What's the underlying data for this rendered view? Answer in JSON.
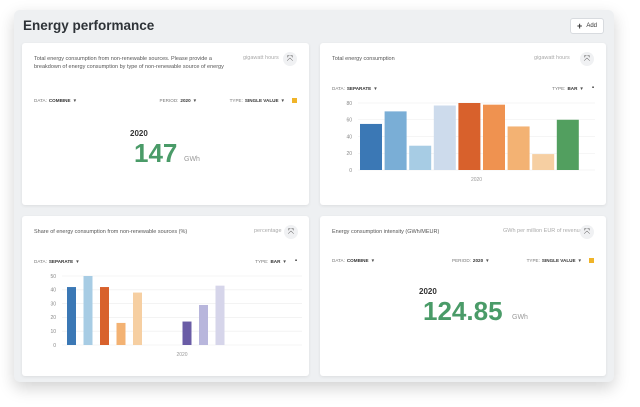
{
  "page": {
    "title": "Energy performance",
    "add_label": "Add"
  },
  "cards": [
    {
      "title": "Total energy consumption from non-renewable sources. Please provide a breakdown of energy consumption by type of non-renewable source of energy",
      "unit": "gigawatt hours",
      "controls": {
        "data_label": "DATA:",
        "data_value": "COMBINE",
        "period_label": "PERIOD:",
        "period_value": "2020",
        "type_label": "TYPE:",
        "type_value": "SINGLE VALUE"
      },
      "year": "2020",
      "value": "147",
      "value_unit": "GWh"
    },
    {
      "title": "Total energy consumption",
      "unit": "gigawatt hours",
      "controls": {
        "data_label": "DATA:",
        "data_value": "SEPARATE",
        "type_label": "TYPE:",
        "type_value": "BAR"
      }
    },
    {
      "title": "Share of energy consumption from non-renewable sources (%)",
      "unit": "percentage",
      "controls": {
        "data_label": "DATA:",
        "data_value": "SEPARATE",
        "type_label": "TYPE:",
        "type_value": "BAR"
      }
    },
    {
      "title": "Energy consumption intensity (GWh/MEUR)",
      "unit": "GWh per million EUR of revenue",
      "controls": {
        "data_label": "DATA:",
        "data_value": "COMBINE",
        "period_label": "PERIOD:",
        "period_value": "2020",
        "type_label": "TYPE:",
        "type_value": "SINGLE VALUE"
      },
      "year": "2020",
      "value": "124.85",
      "value_unit": "GWh"
    }
  ],
  "chart_data": [
    {
      "type": "bar",
      "categories": [
        "2020"
      ],
      "ylim": [
        0,
        80
      ],
      "yticks": [
        "0",
        "20",
        "40",
        "60",
        "80"
      ],
      "series": [
        {
          "color": "#3b78b5",
          "values": [
            55
          ]
        },
        {
          "color": "#7aaed6",
          "values": [
            70
          ]
        },
        {
          "color": "#a7cce4",
          "values": [
            29
          ]
        },
        {
          "color": "#cddbec",
          "values": [
            77
          ]
        },
        {
          "color": "#d8612c",
          "values": [
            80
          ]
        },
        {
          "color": "#ef9250",
          "values": [
            78
          ]
        },
        {
          "color": "#f3b273",
          "values": [
            52
          ]
        },
        {
          "color": "#f6cfa2",
          "values": [
            19
          ]
        },
        {
          "color": "#529f5f",
          "values": [
            60
          ]
        }
      ]
    },
    {
      "type": "bar",
      "categories": [
        "2020"
      ],
      "ylim": [
        0,
        50
      ],
      "yticks": [
        "0",
        "10",
        "20",
        "30",
        "40",
        "50"
      ],
      "series": [
        {
          "color": "#3b78b5",
          "values": [
            42
          ]
        },
        {
          "color": "#a7cce4",
          "values": [
            50
          ]
        },
        {
          "color": "#d8612c",
          "values": [
            42
          ]
        },
        {
          "color": "#f3b273",
          "values": [
            16
          ]
        },
        {
          "color": "#f6cfa2",
          "values": [
            38
          ]
        },
        {
          "color": "#ffffff",
          "values": [
            0
          ]
        },
        {
          "color": "#ffffff",
          "values": [
            0
          ]
        },
        {
          "color": "#6a5ca6",
          "values": [
            17
          ]
        },
        {
          "color": "#b8b6dc",
          "values": [
            29
          ]
        },
        {
          "color": "#d6d5ea",
          "values": [
            43
          ]
        }
      ]
    }
  ],
  "icons": {
    "expand": "expand-icon",
    "add": "plus-icon",
    "save": "save-icon",
    "caret": "caret-down-icon"
  },
  "colors": {
    "accent_green": "#4a9b68",
    "save_yellow": "#f0b429"
  }
}
